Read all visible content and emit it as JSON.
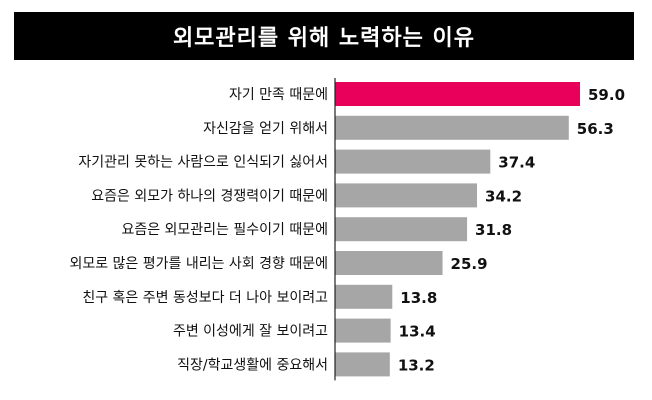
{
  "chart_data": {
    "type": "bar",
    "orientation": "horizontal",
    "title": "외모관리를 위해 노력하는 이유",
    "xlabel": "",
    "ylabel": "",
    "xlim": [
      0,
      59.0
    ],
    "grid": false,
    "categories": [
      "자기 만족 때문에",
      "자신감을 얻기 위해서",
      "자기관리 못하는 사람으로 인식되기 싫어서",
      "요즘은 외모가 하나의 경쟁력이기 때문에",
      "요즘은 외모관리는 필수이기 때문에",
      "외모로 많은 평가를 내리는 사회 경향 때문에",
      "친구 혹은 주변 동성보다 더 나아 보이려고",
      "주변 이성에게 잘 보이려고",
      "직장/학교생활에 중요해서"
    ],
    "values": [
      59.0,
      56.3,
      37.4,
      34.2,
      31.8,
      25.9,
      13.8,
      13.4,
      13.2
    ],
    "value_labels": [
      "59.0",
      "56.3",
      "37.4",
      "34.2",
      "31.8",
      "25.9",
      "13.8",
      "13.4",
      "13.2"
    ],
    "highlight_index": 0,
    "colors": {
      "highlight": "#E8005A",
      "bar": "#A6A6A6",
      "title_bg": "#000000",
      "title_text": "#FFFFFF",
      "separator": "#222222"
    }
  }
}
